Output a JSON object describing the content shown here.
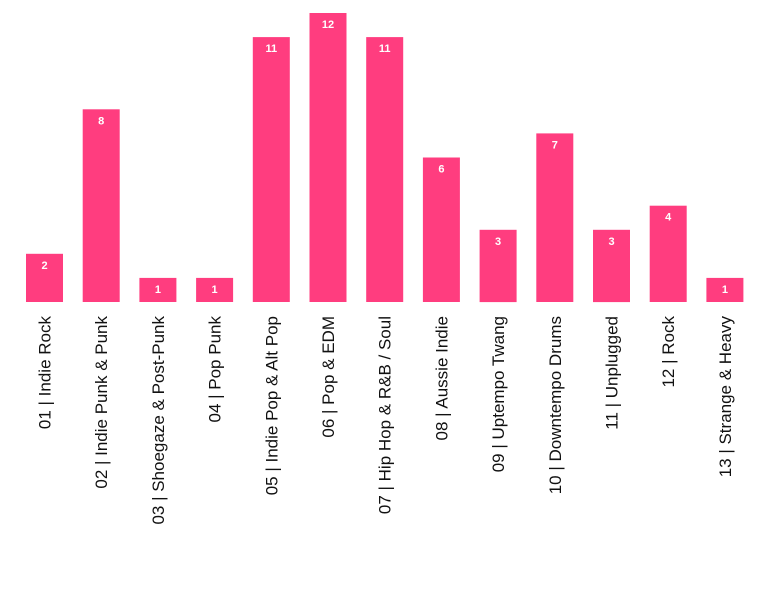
{
  "colors": {
    "bar": "#ff3d7f",
    "value_label": "#ffffff",
    "category_label": "#111111",
    "background": "#ffffff"
  },
  "chart_data": {
    "type": "bar",
    "title": "",
    "xlabel": "",
    "ylabel": "",
    "grid": false,
    "legend": "none",
    "ylim": [
      0,
      12
    ],
    "categories": [
      "01 | Indie Rock",
      "02 | Indie Punk & Punk",
      "03 | Shoegaze & Post-Punk",
      "04 | Pop Punk",
      "05 | Indie Pop & Alt Pop",
      "06 | Pop & EDM",
      "07 | Hip Hop & R&B / Soul",
      "08 | Aussie Indie",
      "09 | Uptempo Twang",
      "10 | Downtempo Drums",
      "11 | Unplugged",
      "12 | Rock",
      "13 | Strange & Heavy"
    ],
    "values": [
      2,
      8,
      1,
      1,
      11,
      12,
      11,
      6,
      3,
      7,
      3,
      4,
      1
    ],
    "data_labels": true
  }
}
